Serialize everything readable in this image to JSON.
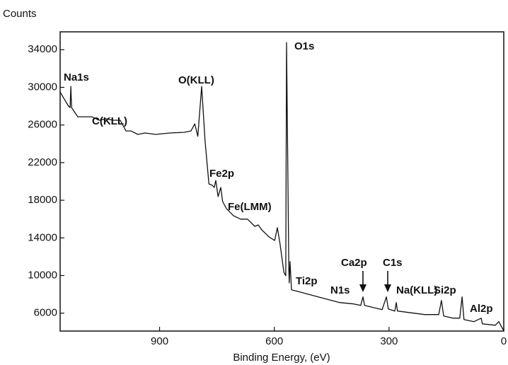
{
  "chart_data": {
    "type": "line",
    "y_axis_label": "Counts",
    "x_axis_label": "Binding Energy, (eV)",
    "xlim": [
      1160,
      0
    ],
    "xticks": [
      900,
      600,
      300,
      0
    ],
    "ylim": [
      4100,
      35900
    ],
    "yticks": [
      6000,
      10000,
      14000,
      18000,
      22000,
      26000,
      30000,
      34000
    ],
    "annotations": [
      "Na1s",
      "C(KLL)",
      "O(KLL)",
      "O1s",
      "Fe2p",
      "Fe(LMM)",
      "Ti2p",
      "N1s",
      "Ca2p",
      "C1s",
      "Na(KLL)",
      "Si2p",
      "Al2p"
    ],
    "series": [
      {
        "color": "#111111",
        "x": [
          1160,
          1147,
          1138,
          1134,
          1132,
          1130,
          1114,
          1077,
          1058,
          1040,
          1021,
          1003,
          988,
          975,
          957,
          938,
          910,
          873,
          836,
          818,
          808,
          800,
          790,
          781,
          771,
          762,
          757,
          753,
          747,
          740,
          735,
          725,
          707,
          688,
          670,
          651,
          642,
          633,
          614,
          599,
          592,
          585,
          575,
          570,
          568,
          562,
          561,
          559,
          555,
          540,
          485,
          429,
          392,
          374,
          368,
          364,
          318,
          307,
          302,
          285,
          281,
          278,
          207,
          170,
          163,
          157,
          133,
          115,
          109,
          104,
          78,
          59,
          56,
          22,
          13,
          0
        ],
        "values": [
          29500,
          28600,
          28000,
          27850,
          30100,
          27850,
          26870,
          26870,
          26500,
          26650,
          26500,
          26500,
          25370,
          25370,
          25000,
          25150,
          25000,
          25150,
          25220,
          25370,
          26120,
          24800,
          30100,
          24240,
          19740,
          19590,
          19360,
          20100,
          18390,
          19360,
          17860,
          17110,
          16360,
          15990,
          15990,
          15230,
          15380,
          14860,
          14110,
          13730,
          15080,
          13360,
          10360,
          9980,
          34760,
          10730,
          9230,
          11480,
          8480,
          8330,
          7730,
          7130,
          6980,
          6830,
          7730,
          6830,
          6380,
          7730,
          6450,
          6230,
          7130,
          6230,
          5850,
          5850,
          7350,
          5700,
          5470,
          5470,
          7730,
          5320,
          5100,
          5470,
          4870,
          4720,
          5100,
          4120
        ]
      }
    ]
  }
}
